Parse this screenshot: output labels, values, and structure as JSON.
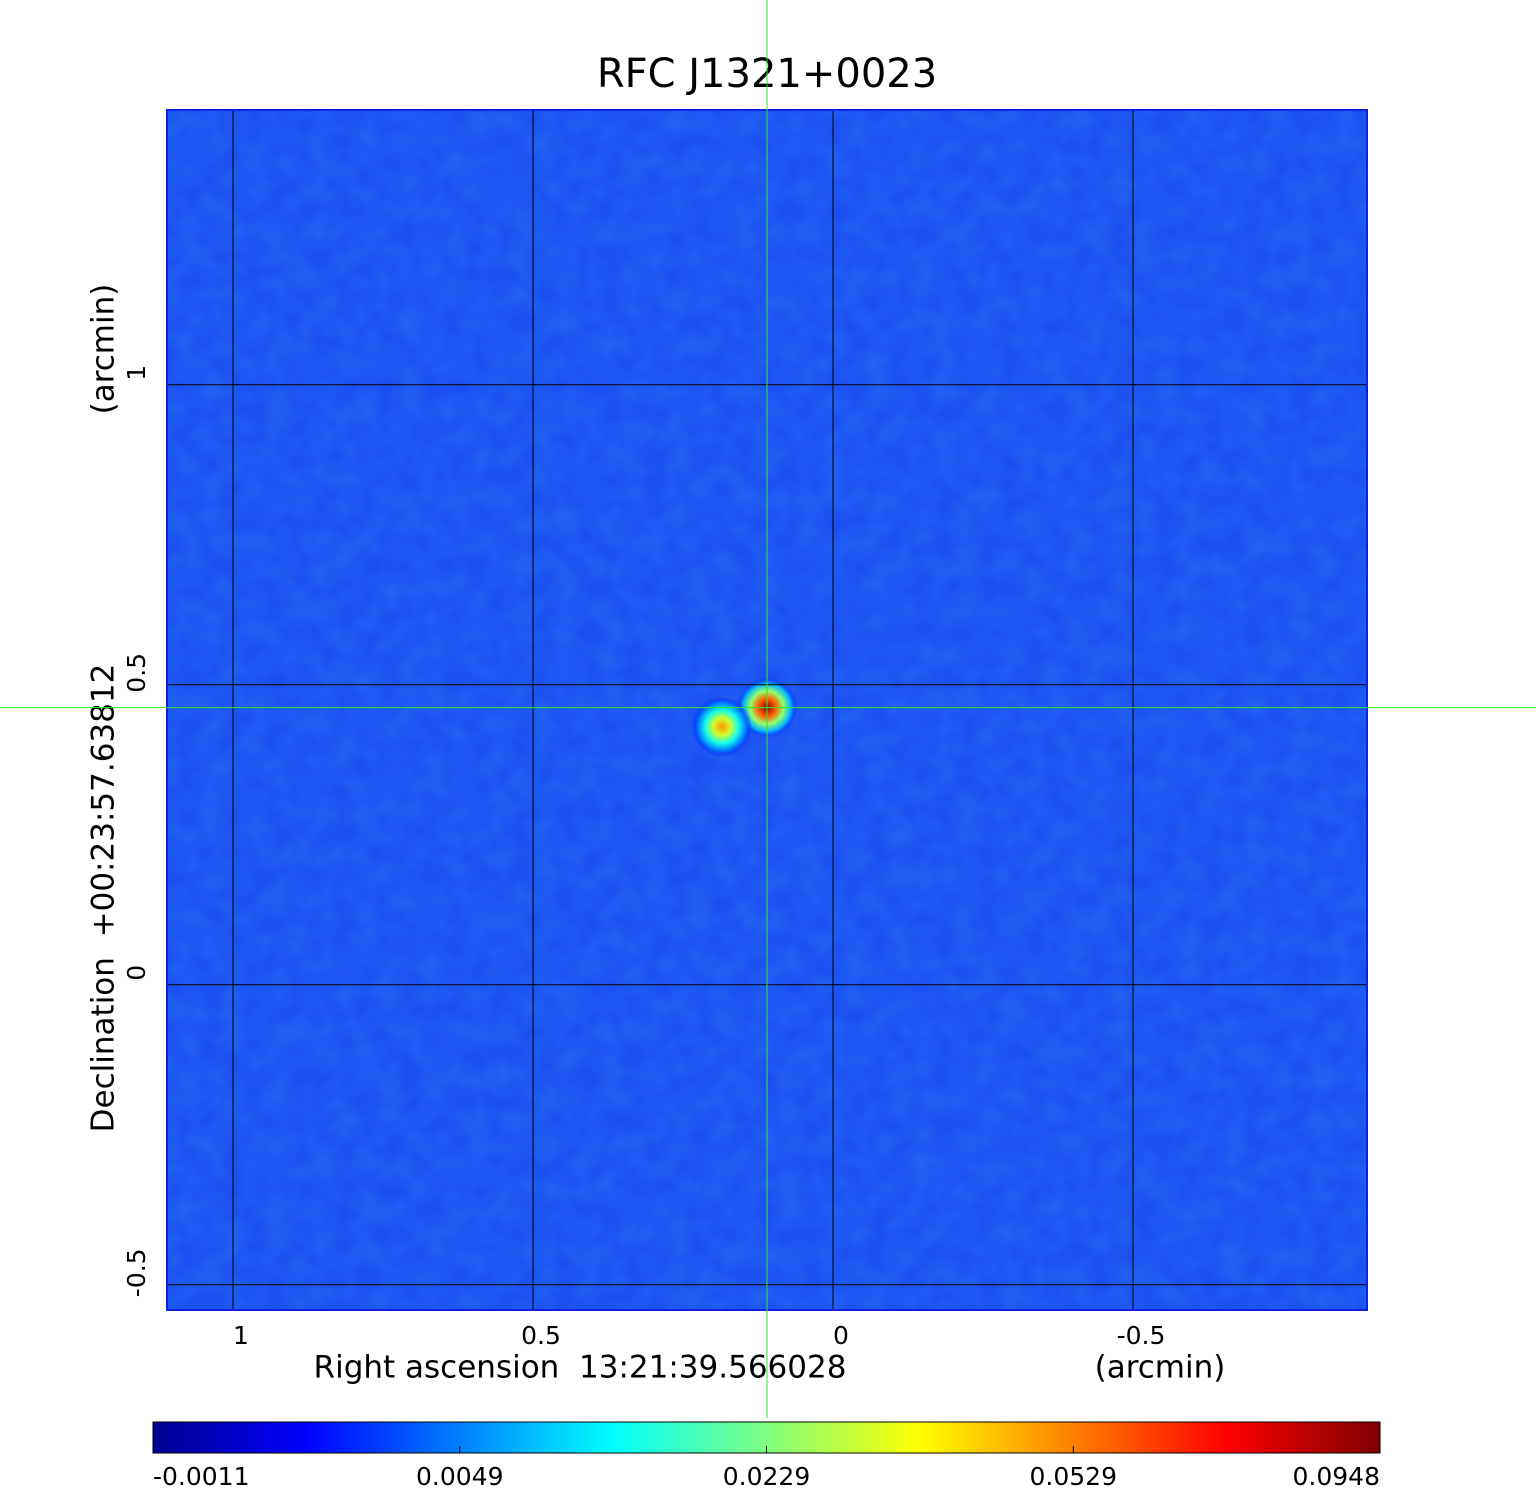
{
  "chart_data": {
    "type": "heatmap",
    "title": "RFC J1321+0023",
    "xlabel": "Right ascension  13:21:39.566028",
    "xunit": "(arcmin)",
    "ylabel": "Declination  +00:23:57.63812",
    "yunit": "(arcmin)",
    "xlim": [
      1.11,
      -0.89
    ],
    "ylim": [
      -0.542,
      1.458
    ],
    "xticks": [
      1.0,
      0.5,
      0.0,
      -0.5
    ],
    "yticks": [
      -0.5,
      0.0,
      0.5,
      1.0
    ],
    "x": [
      0.11,
      0.185
    ],
    "y": [
      0.462,
      0.43
    ],
    "values": [
      0.0948,
      0.05
    ],
    "colorbar_ticks": [
      -0.0011,
      0.0049,
      0.0229,
      0.0529,
      0.0948
    ],
    "colormap": "jet",
    "background_color": "#1a4ff2",
    "title_color": "#1414d2",
    "grid": true,
    "crosshair_color": "#33e633"
  }
}
